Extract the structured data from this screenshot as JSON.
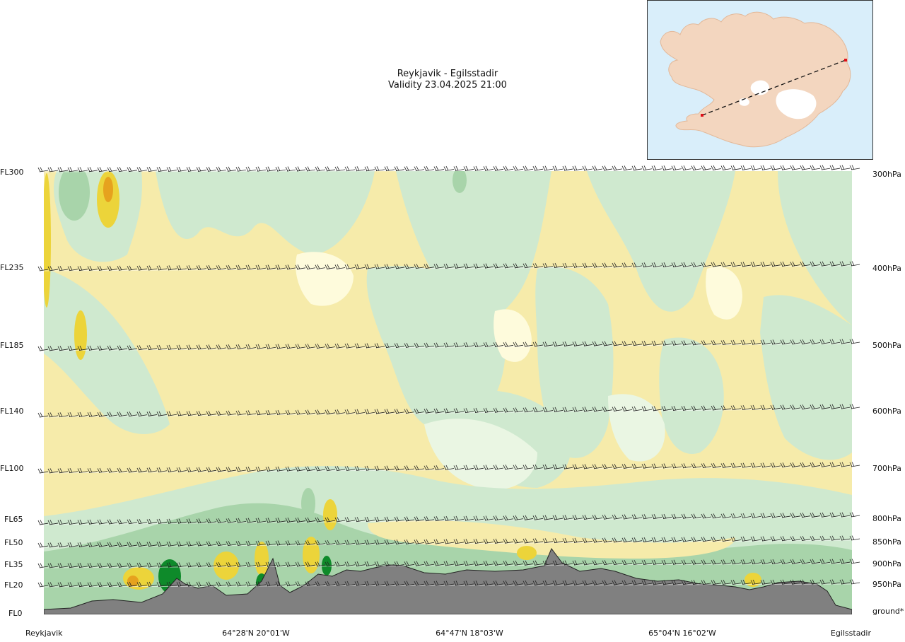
{
  "header": {
    "title": "Reykjavik - Egilsstadir",
    "validity": "Validity 23.04.2025 21:00"
  },
  "inset_map": {
    "icons": [
      "iceland-map",
      "route-line",
      "start-point-marker",
      "end-point-marker"
    ],
    "colors": {
      "sea": "#d9eefa",
      "land": "#f3d6bf",
      "ice": "#ffffff",
      "route": "#111111",
      "marker": "#e0101a"
    }
  },
  "chart_data": {
    "type": "heatmap",
    "title": "Reykjavik - Egilsstadir",
    "subtitle": "Validity 23.04.2025 21:00",
    "y_left_ticks": [
      "FL300",
      "FL235",
      "FL185",
      "FL140",
      "FL100",
      "FL65",
      "FL50",
      "FL35",
      "FL20",
      "FL0"
    ],
    "y_right_ticks": [
      "300hPa",
      "400hPa",
      "500hPa",
      "600hPa",
      "700hPa",
      "800hPa",
      "850hPa",
      "900hPa",
      "950hPa",
      "ground*"
    ],
    "x_ticks": [
      "Reykjavik",
      "64°28'N 20°01'W",
      "64°47'N 18°03'W",
      "65°04'N 16°02'W",
      "Egilsstadir"
    ],
    "terrain_color": "#808080",
    "colors": {
      "dark_green": "#0e8a2a",
      "mid_green": "#a8d4aa",
      "light_green": "#cfe9cf",
      "pale_green": "#eaf6e3",
      "cream": "#fefbdc",
      "light_yellow": "#f6ebaa",
      "yellow": "#ecd43a",
      "orange": "#e6a21e"
    }
  }
}
